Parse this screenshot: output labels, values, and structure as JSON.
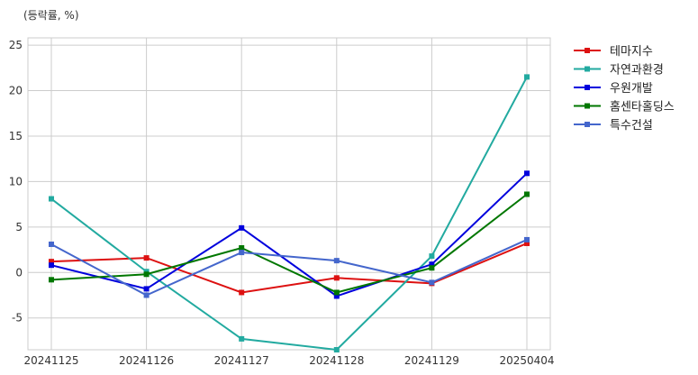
{
  "unit_label": "(등락률, %)",
  "chart_data": {
    "type": "line",
    "categories": [
      "20241125",
      "20241126",
      "20241127",
      "20241128",
      "20241129",
      "20250404"
    ],
    "ylim": [
      -8.5,
      25.8
    ],
    "yticks": [
      -5,
      0,
      5,
      10,
      15,
      20,
      25
    ],
    "ytick_labels": [
      "-5",
      "0",
      "5",
      "10",
      "15",
      "20",
      "25"
    ],
    "grid": true,
    "legend_position": "top-right outside",
    "series": [
      {
        "name": "테마지수",
        "color": "#dd1111",
        "values": [
          1.2,
          1.6,
          -2.2,
          -0.6,
          -1.2,
          3.2
        ]
      },
      {
        "name": "자연과환경",
        "color": "#22aaa0",
        "values": [
          8.1,
          0.1,
          -7.3,
          -8.5,
          1.8,
          21.5
        ]
      },
      {
        "name": "우원개발",
        "color": "#0000dd",
        "values": [
          0.8,
          -1.8,
          4.9,
          -2.6,
          0.9,
          10.9
        ]
      },
      {
        "name": "홈센타홀딩스",
        "color": "#007700",
        "values": [
          -0.8,
          -0.2,
          2.7,
          -2.2,
          0.5,
          8.6
        ]
      },
      {
        "name": "특수건설",
        "color": "#4466cc",
        "values": [
          3.1,
          -2.5,
          2.2,
          1.3,
          -1.1,
          3.6
        ]
      }
    ]
  }
}
